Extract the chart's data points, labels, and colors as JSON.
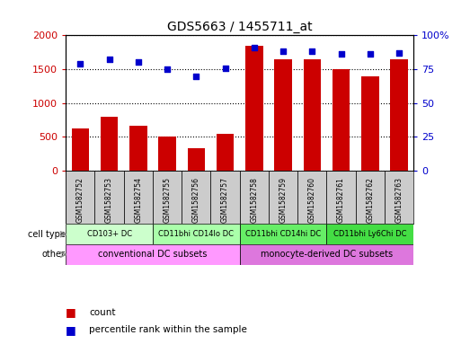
{
  "title": "GDS5663 / 1455711_at",
  "samples": [
    "GSM1582752",
    "GSM1582753",
    "GSM1582754",
    "GSM1582755",
    "GSM1582756",
    "GSM1582757",
    "GSM1582758",
    "GSM1582759",
    "GSM1582760",
    "GSM1582761",
    "GSM1582762",
    "GSM1582763"
  ],
  "counts": [
    630,
    800,
    670,
    500,
    340,
    540,
    1850,
    1640,
    1650,
    1500,
    1400,
    1640
  ],
  "percentiles": [
    79,
    82,
    80,
    75,
    70,
    76,
    91,
    88,
    88,
    86,
    86,
    87
  ],
  "ylim_left": [
    0,
    2000
  ],
  "ylim_right": [
    0,
    100
  ],
  "yticks_left": [
    0,
    500,
    1000,
    1500,
    2000
  ],
  "yticks_right": [
    0,
    25,
    50,
    75,
    100
  ],
  "bar_color": "#cc0000",
  "dot_color": "#0000cc",
  "cell_types": [
    {
      "label": "CD103+ DC",
      "start": 0,
      "end": 3,
      "color": "#ccffcc"
    },
    {
      "label": "CD11bhi CD14lo DC",
      "start": 3,
      "end": 6,
      "color": "#aaffaa"
    },
    {
      "label": "CD11bhi CD14hi DC",
      "start": 6,
      "end": 9,
      "color": "#66ee66"
    },
    {
      "label": "CD11bhi Ly6Chi DC",
      "start": 9,
      "end": 12,
      "color": "#44dd44"
    }
  ],
  "other_groups": [
    {
      "label": "conventional DC subsets",
      "start": 0,
      "end": 6,
      "color": "#ff99ff"
    },
    {
      "label": "monocyte-derived DC subsets",
      "start": 6,
      "end": 12,
      "color": "#dd77dd"
    }
  ],
  "cell_type_label": "cell type",
  "other_label": "other",
  "legend_count_label": "count",
  "legend_percentile_label": "percentile rank within the sample",
  "background_color": "#ffffff",
  "sample_bg": "#cccccc",
  "sample_border": "#999999"
}
